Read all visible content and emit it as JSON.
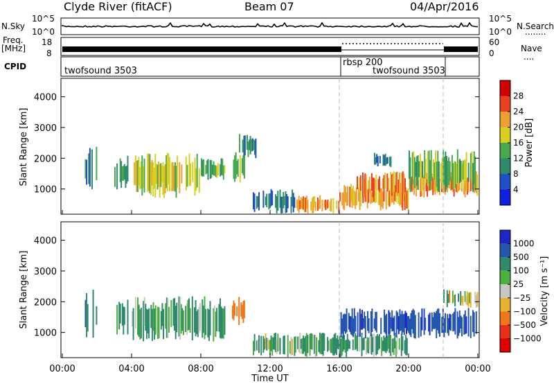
{
  "header": {
    "station": "Clyde River (fitACF)",
    "beam": "Beam 07",
    "date": "04/Apr/2016"
  },
  "params": {
    "nsky_label": "N.Sky",
    "nsearch_label": "N.Search",
    "nsearch_dots": "........",
    "nsky_top": "10^5",
    "nsky_bottom": "10^0",
    "nsearch_top": "10^5",
    "nsearch_bottom": "10^0",
    "freq_label": "Freq.",
    "freq_unit": "[MHz]",
    "freq_top": "18",
    "freq_bottom": "8",
    "nave_label": "Nave",
    "nave_dots": "....",
    "nave_top": "60",
    "nave_bottom": "0",
    "cpid_label": "CPID",
    "cpid_segments": [
      {
        "name": "twofsound 3503",
        "start": 0,
        "end": 16
      },
      {
        "name": "rbsp 200",
        "start": 16,
        "end": 22
      },
      {
        "name": "twofsound 3503",
        "start": 16,
        "end": 22
      }
    ]
  },
  "chart_data": [
    {
      "type": "heatmap",
      "title": "",
      "xlabel": "",
      "ylabel": "Slant Range [km]",
      "x_range_hours": [
        0,
        24
      ],
      "ylim": [
        180,
        4600
      ],
      "yticks": [
        1000,
        2000,
        3000,
        4000
      ],
      "colorbar": {
        "label": "Power [dB]",
        "ticks": [
          4,
          8,
          12,
          16,
          20,
          24,
          28
        ],
        "range": [
          0,
          32
        ],
        "colors": [
          "#1020e0",
          "#2050c8",
          "#2f8a6a",
          "#48a850",
          "#d8d020",
          "#f0a030",
          "#e84020",
          "#d00000"
        ]
      },
      "regions": [
        {
          "t": [
            1.3,
            2.0
          ],
          "range_km": [
            800,
            2400
          ],
          "value": 10
        },
        {
          "t": [
            3.0,
            3.8
          ],
          "range_km": [
            900,
            2100
          ],
          "value": 12
        },
        {
          "t": [
            4.0,
            8.0
          ],
          "range_km": [
            700,
            2200
          ],
          "value": 18
        },
        {
          "t": [
            8.0,
            9.4
          ],
          "range_km": [
            1300,
            2000
          ],
          "value": 13
        },
        {
          "t": [
            9.8,
            10.6
          ],
          "range_km": [
            1200,
            2200
          ],
          "value": 16
        },
        {
          "t": [
            10.2,
            11.2
          ],
          "range_km": [
            2000,
            2800
          ],
          "value": 11
        },
        {
          "t": [
            11.0,
            13.5
          ],
          "range_km": [
            200,
            1000
          ],
          "value": 9
        },
        {
          "t": [
            13.5,
            16.0
          ],
          "range_km": [
            200,
            800
          ],
          "value": 22
        },
        {
          "t": [
            16.0,
            20.0
          ],
          "range_km": [
            300,
            1200
          ],
          "value": 22
        },
        {
          "t": [
            17.0,
            24.0
          ],
          "range_km": [
            700,
            1600
          ],
          "value": 23
        },
        {
          "t": [
            20.0,
            24.0
          ],
          "range_km": [
            900,
            2300
          ],
          "value": 14
        },
        {
          "t": [
            18.0,
            19.0
          ],
          "range_km": [
            1700,
            2200
          ],
          "value": 8
        }
      ]
    },
    {
      "type": "heatmap",
      "title": "",
      "xlabel": "Time UT",
      "ylabel": "Slant Range [km]",
      "x_range_hours": [
        0,
        24
      ],
      "xticks": [
        "00:00",
        "04:00",
        "08:00",
        "12:00",
        "16:00",
        "20:00",
        "00:00"
      ],
      "ylim": [
        180,
        4600
      ],
      "yticks": [
        1000,
        2000,
        3000,
        4000
      ],
      "colorbar": {
        "label": "Velocity [m s⁻¹]",
        "ticks": [
          "1000",
          "500",
          "100",
          "25",
          "−25",
          "−100",
          "−500",
          "−1000"
        ],
        "colors": [
          "#1a28c8",
          "#2456b0",
          "#2f8a6a",
          "#4cb040",
          "#c8c8c0",
          "#e8b030",
          "#f07818",
          "#e83018",
          "#e00000"
        ]
      },
      "regions": [
        {
          "t": [
            1.3,
            2.0
          ],
          "range_km": [
            800,
            2400
          ],
          "value": 500
        },
        {
          "t": [
            3.0,
            3.8
          ],
          "range_km": [
            900,
            2100
          ],
          "value": 200
        },
        {
          "t": [
            4.0,
            9.4
          ],
          "range_km": [
            700,
            2200
          ],
          "value": 150
        },
        {
          "t": [
            9.8,
            10.6
          ],
          "range_km": [
            1200,
            2200
          ],
          "value": -300
        },
        {
          "t": [
            11.0,
            13.5
          ],
          "range_km": [
            200,
            1000
          ],
          "value": 80
        },
        {
          "t": [
            13.5,
            20.0
          ],
          "range_km": [
            200,
            1000
          ],
          "value": 150
        },
        {
          "t": [
            16.0,
            24.0
          ],
          "range_km": [
            800,
            1800
          ],
          "value": 900
        },
        {
          "t": [
            22.0,
            24.0
          ],
          "range_km": [
            1800,
            2400
          ],
          "value": 0
        }
      ]
    }
  ],
  "vlines": [
    16,
    22
  ],
  "colors": {
    "frame": "#000000",
    "dash": "#b8b8b8"
  }
}
